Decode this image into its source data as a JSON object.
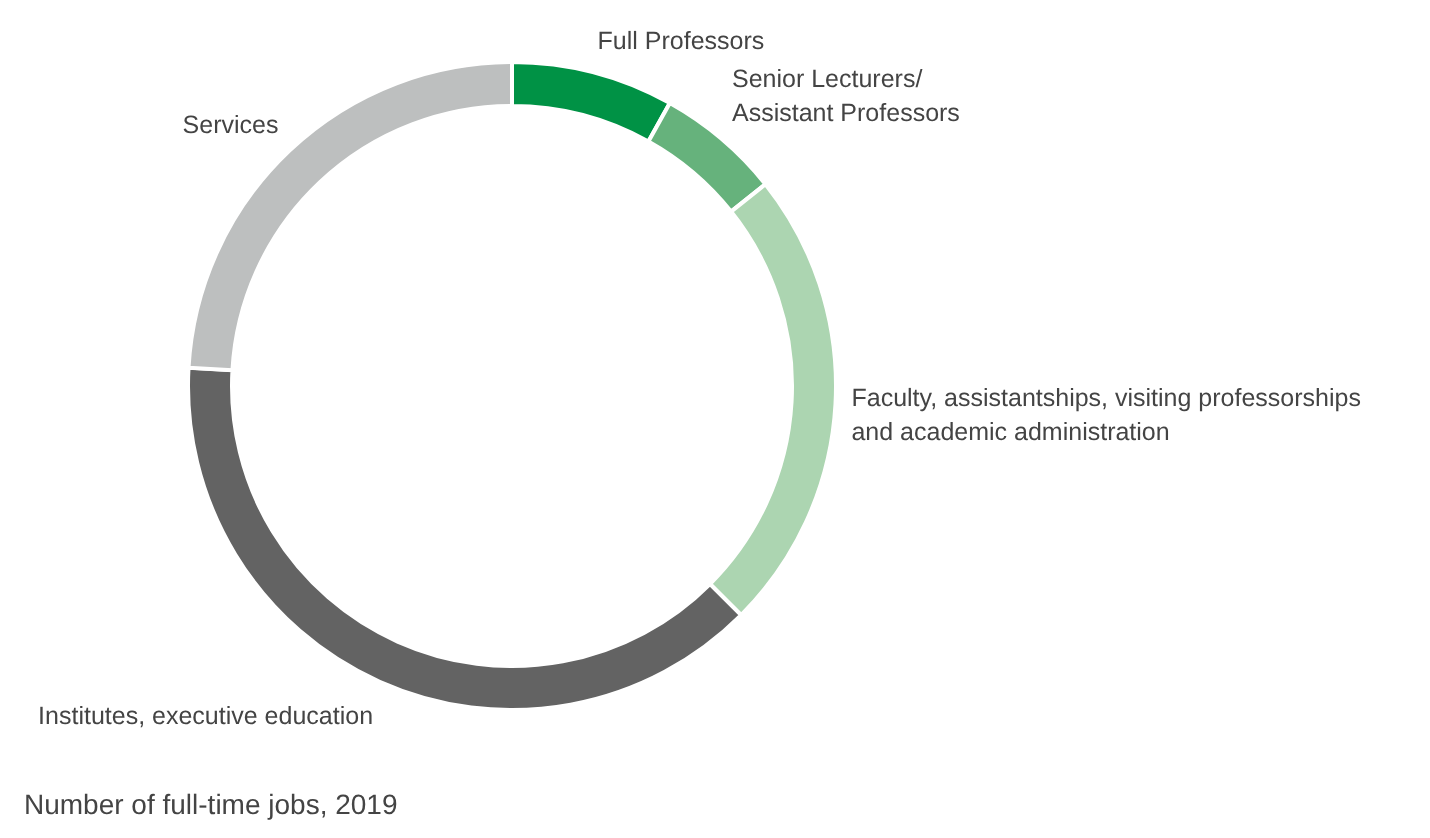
{
  "chart_data": {
    "type": "donut",
    "title": "Number of full-time jobs, 2019",
    "categories": [
      "Full Professors",
      "Senior Lecturers/\nAssistant Professors",
      "Faculty, assistantships, visiting professorships\nand academic administration",
      "Institutes, executive education",
      "Services"
    ],
    "values": [
      8.1,
      6.2,
      23.2,
      38.4,
      24.1
    ],
    "colors": [
      "#009245",
      "#66b27c",
      "#acd5b1",
      "#636363",
      "#bdbfbf"
    ],
    "legend": false
  }
}
